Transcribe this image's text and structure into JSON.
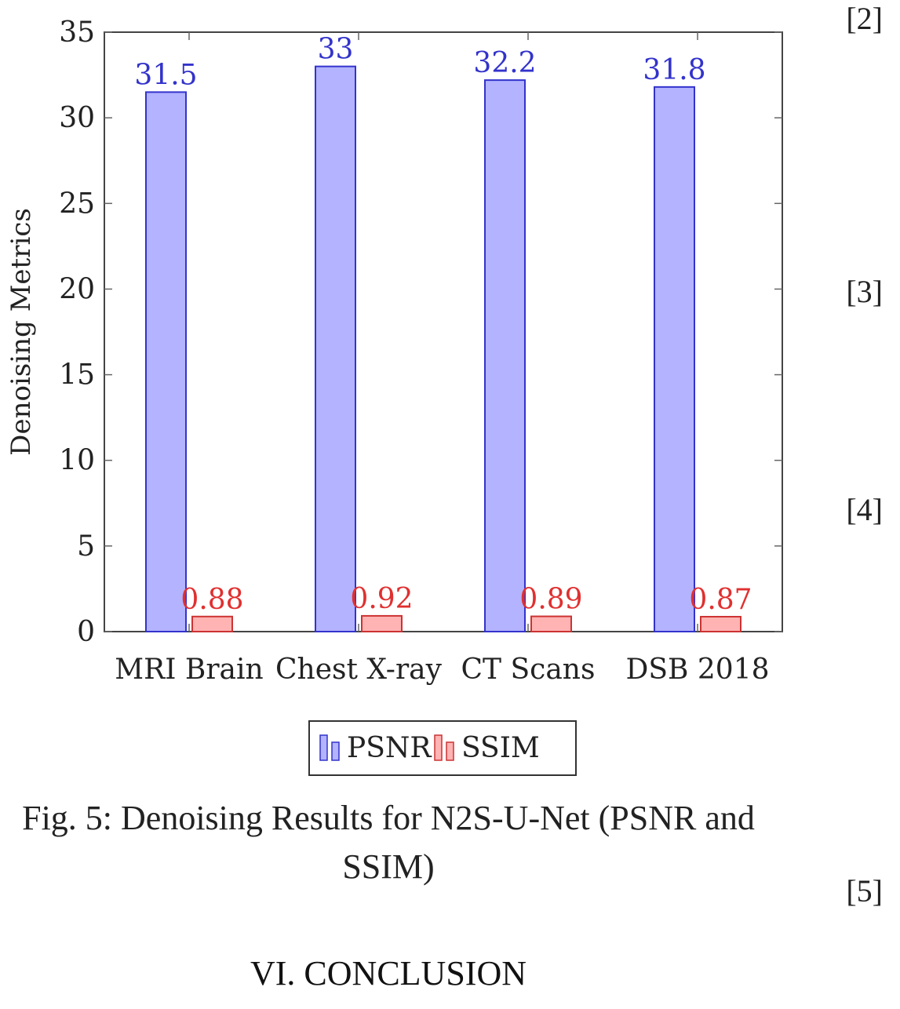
{
  "chart_data": {
    "type": "bar",
    "title": "",
    "xlabel": "",
    "ylabel": "Denoising Metrics",
    "categories": [
      "MRI Brain",
      "Chest X-ray",
      "CT Scans",
      "DSB 2018"
    ],
    "series": [
      {
        "name": "PSNR",
        "values": [
          31.5,
          33,
          32.2,
          31.8
        ],
        "labels": [
          "31.5",
          "33",
          "32.2",
          "31.8"
        ],
        "color": "#b3b3ff",
        "edge": "#3333cc",
        "label_color": "#3333cc"
      },
      {
        "name": "SSIM",
        "values": [
          0.88,
          0.92,
          0.89,
          0.87
        ],
        "labels": [
          "0.88",
          "0.92",
          "0.89",
          "0.87"
        ],
        "color": "#ffb3b3",
        "edge": "#cc3333",
        "label_color": "#e03030"
      }
    ],
    "ylim": [
      0,
      35
    ],
    "yticks": [
      0,
      5,
      10,
      15,
      20,
      25,
      30,
      35
    ],
    "grid": false,
    "legend": "bottom-center"
  },
  "caption": {
    "line1": "Fig. 5: Denoising Results for N2S-U-Net (PSNR and",
    "line2": "SSIM)"
  },
  "section_title": "VI. CONCLUSION",
  "references": [
    "[2]",
    "[3]",
    "[4]",
    "[5]"
  ]
}
